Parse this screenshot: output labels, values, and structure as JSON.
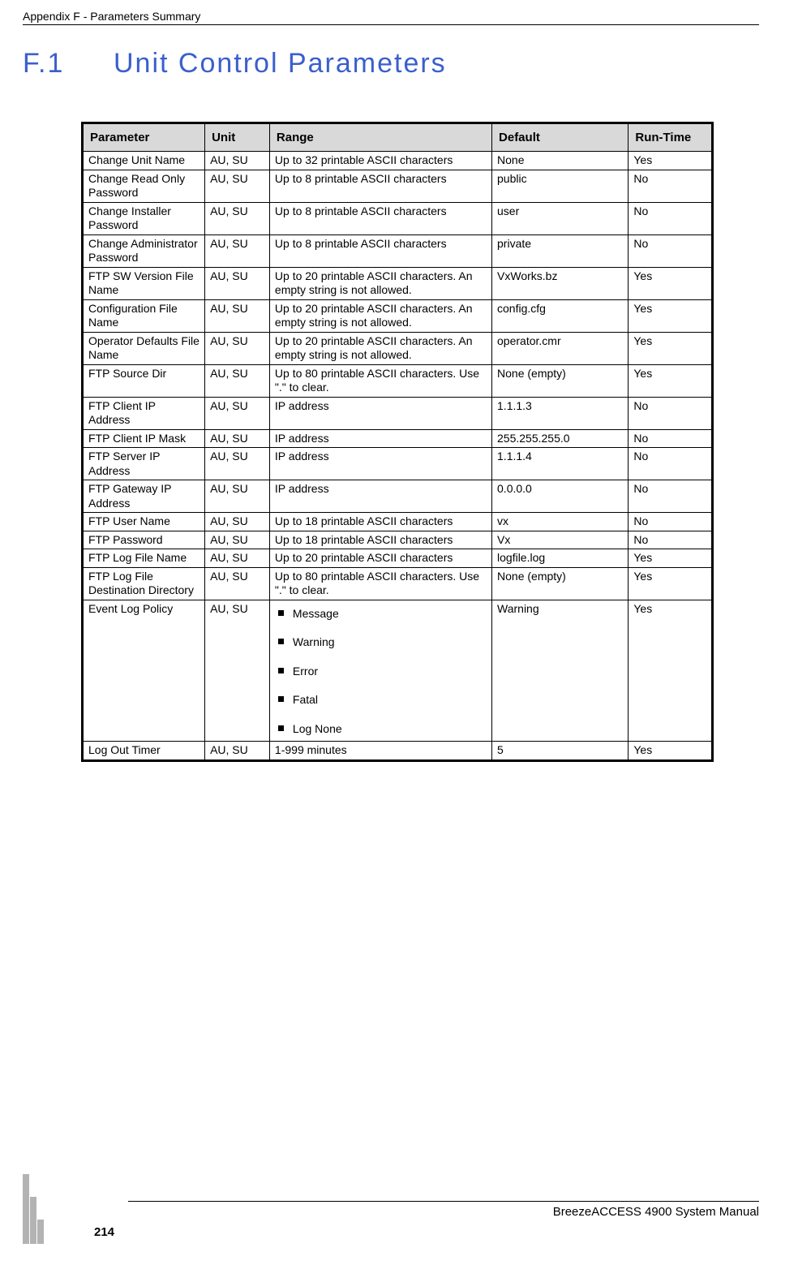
{
  "header": {
    "appendix": "Appendix F - Parameters Summary"
  },
  "section": {
    "number": "F.1",
    "title": "Unit Control Parameters"
  },
  "table": {
    "columns": [
      "Parameter",
      "Unit",
      "Range",
      "Default",
      "Run-Time"
    ],
    "rows": [
      {
        "param": "Change Unit Name",
        "unit": "AU, SU",
        "range": "Up to 32 printable ASCII characters",
        "default": "None",
        "runtime": "Yes"
      },
      {
        "param": "Change Read Only Password",
        "unit": "AU, SU",
        "range": "Up to 8 printable ASCII characters",
        "default": "public",
        "runtime": "No"
      },
      {
        "param": "Change Installer Password",
        "unit": "AU, SU",
        "range": "Up to 8 printable ASCII characters",
        "default": "user",
        "runtime": "No"
      },
      {
        "param": "Change Administrator Password",
        "unit": "AU, SU",
        "range": "Up to 8 printable ASCII characters",
        "default": "private",
        "runtime": "No"
      },
      {
        "param": "FTP SW Version File Name",
        "unit": "AU, SU",
        "range": "Up to 20 printable ASCII characters. An empty string is not allowed.",
        "default": "VxWorks.bz",
        "runtime": "Yes"
      },
      {
        "param": "Configuration File Name",
        "unit": "AU, SU",
        "range": "Up to 20 printable ASCII characters. An empty string is not allowed.",
        "default": "config.cfg",
        "runtime": "Yes"
      },
      {
        "param": "Operator Defaults File Name",
        "unit": "AU, SU",
        "range": "Up to 20 printable ASCII characters. An empty string is not allowed.",
        "default": "operator.cmr",
        "runtime": "Yes"
      },
      {
        "param": "FTP Source Dir",
        "unit": "AU, SU",
        "range": "Up to 80 printable ASCII characters. Use \".\" to clear.",
        "default": "None (empty)",
        "runtime": "Yes"
      },
      {
        "param": "FTP Client IP Address",
        "unit": "AU, SU",
        "range": "IP address",
        "default": "1.1.1.3",
        "runtime": "No"
      },
      {
        "param": "FTP Client IP Mask",
        "unit": "AU, SU",
        "range": "IP address",
        "default": "255.255.255.0",
        "runtime": "No"
      },
      {
        "param": "FTP Server IP Address",
        "unit": "AU, SU",
        "range": "IP address",
        "default": "1.1.1.4",
        "runtime": "No"
      },
      {
        "param": "FTP Gateway IP Address",
        "unit": "AU, SU",
        "range": "IP address",
        "default": "0.0.0.0",
        "runtime": "No"
      },
      {
        "param": "FTP User Name",
        "unit": "AU, SU",
        "range": "Up to 18 printable ASCII characters",
        "default": "vx",
        "runtime": "No"
      },
      {
        "param": "FTP Password",
        "unit": "AU, SU",
        "range": "Up to 18 printable ASCII characters",
        "default": "Vx",
        "runtime": "No"
      },
      {
        "param": "FTP Log File Name",
        "unit": "AU, SU",
        "range": "Up to 20 printable ASCII characters",
        "default": "logfile.log",
        "runtime": "Yes"
      },
      {
        "param": "FTP Log File Destination Directory",
        "unit": "AU, SU",
        "range": "Up to 80 printable ASCII characters. Use \".\" to clear.",
        "default": "None (empty)",
        "runtime": "Yes"
      },
      {
        "param": "Event Log Policy",
        "unit": "AU, SU",
        "range_list": [
          "Message",
          "Warning",
          "Error",
          "Fatal",
          "Log None"
        ],
        "default": "Warning",
        "runtime": "Yes"
      },
      {
        "param": "Log Out Timer",
        "unit": "AU, SU",
        "range": "1-999 minutes",
        "default": "5",
        "runtime": "Yes"
      }
    ]
  },
  "footer": {
    "manual": "BreezeACCESS 4900 System Manual",
    "page": "214"
  }
}
